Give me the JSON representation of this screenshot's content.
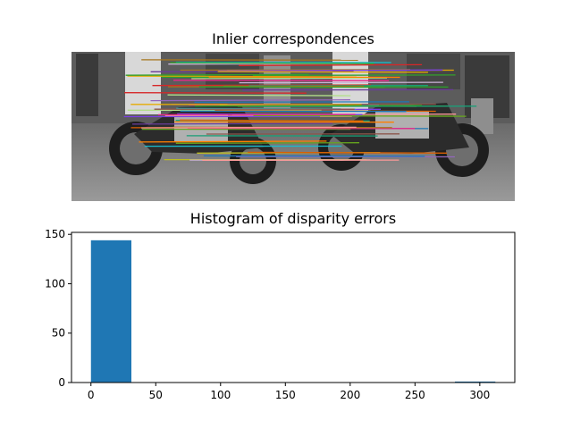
{
  "figure": {
    "top_title": "Inlier correspondences",
    "bottom_title": "Histogram of disparity errors"
  },
  "image_panel": {
    "description_icon": "stereo-motorcycle-pair-image",
    "line_colors": [
      "#7b3fe4",
      "#e7298a",
      "#1b9e77",
      "#d95f02",
      "#66a61e",
      "#e6ab02",
      "#a6761d",
      "#1f78b4",
      "#33a02c",
      "#fb9a99",
      "#b2df8a",
      "#cab2d6",
      "#ff7f00",
      "#6a3d9a",
      "#17becf",
      "#bcbd22",
      "#8c564b",
      "#d62728",
      "#2ca02c",
      "#9467bd"
    ]
  },
  "chart_data": {
    "type": "bar",
    "title": "Histogram of disparity errors",
    "xlabel": "",
    "ylabel": "",
    "bin_edges": [
      0,
      31.2,
      62.4,
      93.6,
      124.8,
      156,
      187.2,
      218.4,
      249.6,
      280.8,
      312
    ],
    "values": [
      144,
      0,
      0,
      0,
      0,
      0,
      0,
      0,
      0,
      1
    ],
    "xlim": [
      -15,
      327
    ],
    "ylim": [
      0,
      152
    ],
    "xticks": [
      0,
      50,
      100,
      150,
      200,
      250,
      300
    ],
    "yticks": [
      0,
      50,
      100,
      150
    ],
    "bar_color": "#1f77b4",
    "grid": false
  }
}
